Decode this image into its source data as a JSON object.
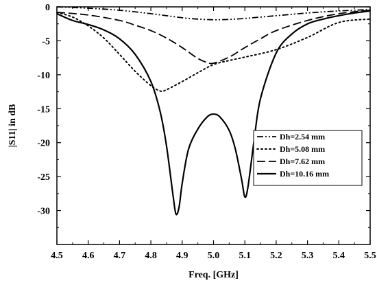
{
  "chart_data": {
    "type": "line",
    "xlabel": "Freq. [GHz]",
    "ylabel": "|S11| in dB",
    "xlim": [
      4.5,
      5.5
    ],
    "ylim": [
      -35,
      0
    ],
    "xticks": [
      4.5,
      4.6,
      4.7,
      4.8,
      4.9,
      5.0,
      5.1,
      5.2,
      5.3,
      5.4,
      5.5
    ],
    "yticks": [
      0,
      -5,
      -10,
      -15,
      -20,
      -25,
      -30
    ],
    "xtick_labels": [
      "4.5",
      "4.6",
      "4.7",
      "4.8",
      "4.9",
      "5.0",
      "5.1",
      "5.2",
      "5.3",
      "5.4",
      "5.5"
    ],
    "ytick_labels": [
      "0",
      "-5",
      "-10",
      "-15",
      "-20",
      "-25",
      "-30"
    ],
    "grid": false,
    "legend_position": "center-right",
    "series": [
      {
        "name": "Dh=2.54 mm",
        "line_style": "dash-dot-dot",
        "x": [
          4.5,
          4.6,
          4.7,
          4.8,
          4.85,
          4.9,
          4.95,
          5.0,
          5.05,
          5.1,
          5.2,
          5.3,
          5.4,
          5.5
        ],
        "y": [
          0,
          -0.2,
          -0.5,
          -1.0,
          -1.3,
          -1.6,
          -1.8,
          -1.9,
          -1.85,
          -1.7,
          -1.3,
          -0.9,
          -0.6,
          -0.4
        ]
      },
      {
        "name": "Dh=5.08 mm",
        "line_style": "dotted",
        "x": [
          4.5,
          4.55,
          4.6,
          4.65,
          4.7,
          4.75,
          4.8,
          4.83,
          4.85,
          4.9,
          4.95,
          5.0,
          5.05,
          5.1,
          5.2,
          5.3,
          5.4,
          5.5
        ],
        "y": [
          -0.8,
          -1.5,
          -2.8,
          -4.6,
          -7.0,
          -9.5,
          -11.6,
          -12.4,
          -12.2,
          -11.0,
          -9.7,
          -8.5,
          -7.9,
          -7.4,
          -6.3,
          -4.5,
          -2.3,
          -1.8
        ]
      },
      {
        "name": "Dh=7.62 mm",
        "line_style": "dashed",
        "x": [
          4.5,
          4.6,
          4.7,
          4.75,
          4.8,
          4.85,
          4.9,
          4.95,
          4.98,
          5.0,
          5.05,
          5.1,
          5.15,
          5.2,
          5.3,
          5.4,
          5.5
        ],
        "y": [
          -0.8,
          -1.2,
          -2.0,
          -2.7,
          -3.5,
          -4.6,
          -6.0,
          -7.6,
          -8.2,
          -8.3,
          -7.4,
          -6.0,
          -4.7,
          -3.5,
          -2.0,
          -1.0,
          -0.5
        ]
      },
      {
        "name": "Dh=10.16 mm",
        "line_style": "solid",
        "x": [
          4.5,
          4.55,
          4.6,
          4.65,
          4.7,
          4.75,
          4.8,
          4.83,
          4.85,
          4.87,
          4.88,
          4.89,
          4.9,
          4.92,
          4.95,
          4.98,
          5.0,
          5.02,
          5.05,
          5.07,
          5.09,
          5.1,
          5.11,
          5.13,
          5.15,
          5.2,
          5.25,
          5.3,
          5.35,
          5.4,
          5.45,
          5.5
        ],
        "y": [
          -1.0,
          -2.0,
          -2.6,
          -3.4,
          -4.7,
          -7.0,
          -11.0,
          -15.5,
          -20.5,
          -27.5,
          -30.5,
          -29.5,
          -26.0,
          -21.0,
          -18.0,
          -16.2,
          -15.8,
          -16.2,
          -18.2,
          -21.0,
          -25.5,
          -28.0,
          -26.5,
          -19.5,
          -13.5,
          -6.8,
          -4.0,
          -2.5,
          -1.8,
          -1.3,
          -0.9,
          -0.6
        ]
      }
    ]
  }
}
